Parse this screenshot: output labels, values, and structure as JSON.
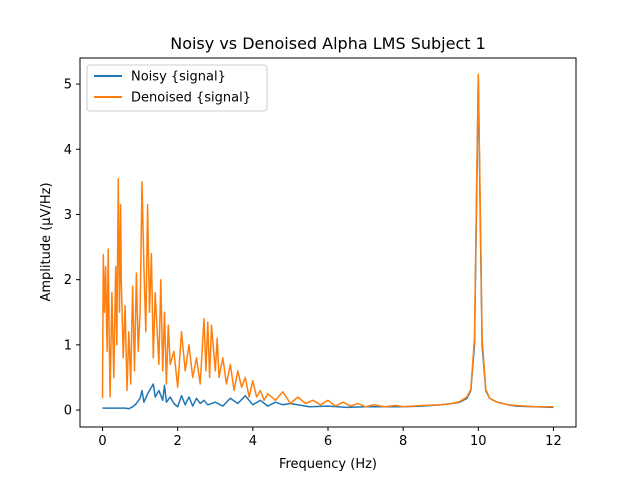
{
  "chart_data": {
    "type": "line",
    "title": "Noisy vs Denoised Alpha LMS Subject 1",
    "xlabel": "Frequency (Hz)",
    "ylabel": "Amplitude (μV/Hz)",
    "xlim": [
      -0.6,
      12.6
    ],
    "ylim": [
      -0.26,
      5.4
    ],
    "xticks": [
      0,
      2,
      4,
      6,
      8,
      10,
      12
    ],
    "yticks": [
      0,
      1,
      2,
      3,
      4,
      5
    ],
    "grid": false,
    "legend_placement": "top-left",
    "series": [
      {
        "name": "Noisy {signal}",
        "color": "#1f77b4",
        "points": [
          [
            0,
            0.03
          ],
          [
            0.3,
            0.03
          ],
          [
            0.6,
            0.03
          ],
          [
            0.7,
            0.02
          ],
          [
            0.8,
            0.05
          ],
          [
            0.9,
            0.1
          ],
          [
            1.0,
            0.18
          ],
          [
            1.05,
            0.3
          ],
          [
            1.1,
            0.12
          ],
          [
            1.2,
            0.25
          ],
          [
            1.3,
            0.35
          ],
          [
            1.35,
            0.4
          ],
          [
            1.4,
            0.2
          ],
          [
            1.5,
            0.3
          ],
          [
            1.6,
            0.15
          ],
          [
            1.65,
            0.38
          ],
          [
            1.7,
            0.12
          ],
          [
            1.8,
            0.2
          ],
          [
            1.9,
            0.1
          ],
          [
            2.0,
            0.05
          ],
          [
            2.1,
            0.22
          ],
          [
            2.2,
            0.08
          ],
          [
            2.3,
            0.2
          ],
          [
            2.4,
            0.06
          ],
          [
            2.5,
            0.18
          ],
          [
            2.6,
            0.1
          ],
          [
            2.7,
            0.15
          ],
          [
            2.8,
            0.08
          ],
          [
            3.0,
            0.12
          ],
          [
            3.2,
            0.06
          ],
          [
            3.4,
            0.18
          ],
          [
            3.6,
            0.1
          ],
          [
            3.8,
            0.22
          ],
          [
            4.0,
            0.08
          ],
          [
            4.2,
            0.15
          ],
          [
            4.4,
            0.06
          ],
          [
            4.6,
            0.12
          ],
          [
            4.8,
            0.08
          ],
          [
            5.0,
            0.1
          ],
          [
            5.5,
            0.05
          ],
          [
            6.0,
            0.06
          ],
          [
            6.5,
            0.04
          ],
          [
            7.0,
            0.05
          ],
          [
            7.5,
            0.05
          ],
          [
            8.0,
            0.05
          ],
          [
            8.5,
            0.06
          ],
          [
            9.0,
            0.08
          ],
          [
            9.3,
            0.1
          ],
          [
            9.5,
            0.12
          ],
          [
            9.7,
            0.18
          ],
          [
            9.8,
            0.3
          ],
          [
            9.9,
            1.0
          ],
          [
            9.95,
            3.0
          ],
          [
            10.0,
            5.1
          ],
          [
            10.05,
            3.0
          ],
          [
            10.1,
            1.0
          ],
          [
            10.2,
            0.3
          ],
          [
            10.3,
            0.18
          ],
          [
            10.5,
            0.12
          ],
          [
            10.8,
            0.08
          ],
          [
            11.0,
            0.06
          ],
          [
            11.5,
            0.05
          ],
          [
            12.0,
            0.04
          ]
        ]
      },
      {
        "name": "Denoised {signal}",
        "color": "#ff7f0e",
        "points": [
          [
            0,
            0.18
          ],
          [
            0.02,
            2.38
          ],
          [
            0.05,
            1.5
          ],
          [
            0.08,
            2.2
          ],
          [
            0.12,
            0.9
          ],
          [
            0.15,
            2.47
          ],
          [
            0.18,
            1.0
          ],
          [
            0.2,
            0.2
          ],
          [
            0.25,
            1.8
          ],
          [
            0.3,
            0.5
          ],
          [
            0.35,
            2.2
          ],
          [
            0.38,
            1.0
          ],
          [
            0.42,
            3.55
          ],
          [
            0.45,
            1.5
          ],
          [
            0.48,
            3.15
          ],
          [
            0.5,
            2.0
          ],
          [
            0.55,
            0.8
          ],
          [
            0.6,
            1.6
          ],
          [
            0.65,
            0.3
          ],
          [
            0.7,
            1.2
          ],
          [
            0.75,
            0.4
          ],
          [
            0.8,
            1.9
          ],
          [
            0.85,
            0.6
          ],
          [
            0.9,
            2.1
          ],
          [
            0.95,
            0.9
          ],
          [
            1.0,
            1.5
          ],
          [
            1.05,
            3.5
          ],
          [
            1.1,
            2.2
          ],
          [
            1.15,
            1.2
          ],
          [
            1.2,
            3.15
          ],
          [
            1.25,
            1.5
          ],
          [
            1.3,
            2.4
          ],
          [
            1.35,
            0.8
          ],
          [
            1.4,
            1.8
          ],
          [
            1.5,
            0.7
          ],
          [
            1.55,
            2.0
          ],
          [
            1.6,
            0.6
          ],
          [
            1.65,
            1.5
          ],
          [
            1.7,
            0.4
          ],
          [
            1.75,
            1.3
          ],
          [
            1.8,
            0.7
          ],
          [
            1.9,
            0.9
          ],
          [
            2.0,
            0.35
          ],
          [
            2.1,
            1.2
          ],
          [
            2.2,
            0.6
          ],
          [
            2.3,
            1.0
          ],
          [
            2.4,
            0.5
          ],
          [
            2.5,
            0.8
          ],
          [
            2.6,
            0.4
          ],
          [
            2.7,
            1.4
          ],
          [
            2.75,
            0.6
          ],
          [
            2.8,
            1.35
          ],
          [
            2.85,
            0.5
          ],
          [
            2.9,
            1.3
          ],
          [
            3.0,
            0.6
          ],
          [
            3.05,
            1.1
          ],
          [
            3.1,
            0.5
          ],
          [
            3.2,
            0.8
          ],
          [
            3.3,
            0.4
          ],
          [
            3.4,
            0.7
          ],
          [
            3.5,
            0.3
          ],
          [
            3.6,
            0.6
          ],
          [
            3.7,
            0.35
          ],
          [
            3.8,
            0.5
          ],
          [
            3.9,
            0.2
          ],
          [
            4.0,
            0.45
          ],
          [
            4.1,
            0.2
          ],
          [
            4.2,
            0.3
          ],
          [
            4.3,
            0.15
          ],
          [
            4.4,
            0.25
          ],
          [
            4.6,
            0.15
          ],
          [
            4.8,
            0.28
          ],
          [
            5.0,
            0.1
          ],
          [
            5.2,
            0.2
          ],
          [
            5.4,
            0.1
          ],
          [
            5.6,
            0.15
          ],
          [
            5.8,
            0.08
          ],
          [
            6.0,
            0.15
          ],
          [
            6.2,
            0.06
          ],
          [
            6.4,
            0.12
          ],
          [
            6.6,
            0.06
          ],
          [
            6.8,
            0.1
          ],
          [
            7.0,
            0.05
          ],
          [
            7.2,
            0.08
          ],
          [
            7.5,
            0.05
          ],
          [
            7.8,
            0.07
          ],
          [
            8.0,
            0.05
          ],
          [
            8.5,
            0.07
          ],
          [
            9.0,
            0.08
          ],
          [
            9.3,
            0.1
          ],
          [
            9.5,
            0.13
          ],
          [
            9.7,
            0.2
          ],
          [
            9.8,
            0.32
          ],
          [
            9.9,
            1.1
          ],
          [
            9.95,
            3.2
          ],
          [
            10.0,
            5.15
          ],
          [
            10.05,
            3.2
          ],
          [
            10.1,
            1.1
          ],
          [
            10.2,
            0.32
          ],
          [
            10.3,
            0.18
          ],
          [
            10.5,
            0.12
          ],
          [
            10.8,
            0.08
          ],
          [
            11.0,
            0.07
          ],
          [
            11.5,
            0.05
          ],
          [
            12.0,
            0.05
          ]
        ]
      }
    ]
  }
}
